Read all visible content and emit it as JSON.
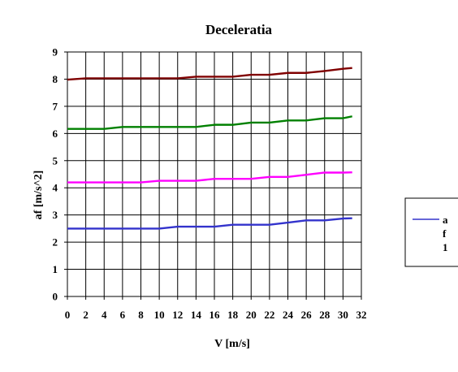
{
  "chart_data": {
    "type": "line",
    "title": "Deceleratia",
    "xlabel": "V [m/s]",
    "ylabel": "af [m/s^2]",
    "xlim": [
      0,
      32
    ],
    "ylim": [
      0,
      9
    ],
    "x_ticks": [
      0,
      2,
      4,
      6,
      8,
      10,
      12,
      14,
      16,
      18,
      20,
      22,
      24,
      26,
      28,
      30,
      32
    ],
    "y_ticks": [
      0,
      1,
      2,
      3,
      4,
      5,
      6,
      7,
      8,
      9
    ],
    "grid": true,
    "legend_position": "right",
    "series": [
      {
        "color": "#3333cc",
        "x": [
          0,
          2,
          4,
          6,
          8,
          10,
          12,
          14,
          16,
          18,
          20,
          22,
          24,
          26,
          28,
          30,
          31
        ],
        "values": [
          2.5,
          2.5,
          2.5,
          2.5,
          2.5,
          2.5,
          2.57,
          2.57,
          2.57,
          2.64,
          2.64,
          2.64,
          2.72,
          2.8,
          2.8,
          2.87,
          2.88
        ]
      },
      {
        "color": "#ff00ff",
        "x": [
          0,
          2,
          4,
          6,
          8,
          10,
          12,
          14,
          16,
          18,
          20,
          22,
          24,
          26,
          28,
          30,
          31
        ],
        "values": [
          4.2,
          4.2,
          4.2,
          4.2,
          4.2,
          4.26,
          4.26,
          4.26,
          4.33,
          4.33,
          4.33,
          4.4,
          4.4,
          4.48,
          4.56,
          4.56,
          4.57
        ]
      },
      {
        "color": "#008000",
        "x": [
          0,
          2,
          4,
          6,
          8,
          10,
          12,
          14,
          16,
          18,
          20,
          22,
          24,
          26,
          28,
          30,
          31
        ],
        "values": [
          6.17,
          6.17,
          6.17,
          6.24,
          6.24,
          6.24,
          6.24,
          6.24,
          6.32,
          6.32,
          6.4,
          6.4,
          6.48,
          6.48,
          6.56,
          6.56,
          6.63
        ]
      },
      {
        "color": "#800000",
        "x": [
          0,
          2,
          4,
          6,
          8,
          10,
          12,
          14,
          16,
          18,
          20,
          22,
          24,
          26,
          28,
          30,
          31
        ],
        "values": [
          7.98,
          8.03,
          8.03,
          8.03,
          8.03,
          8.03,
          8.03,
          8.09,
          8.09,
          8.09,
          8.16,
          8.16,
          8.23,
          8.23,
          8.3,
          8.38,
          8.41
        ]
      }
    ],
    "legend": {
      "line_color": "#3333cc",
      "text_lines": [
        "a",
        "f",
        "1"
      ]
    }
  }
}
